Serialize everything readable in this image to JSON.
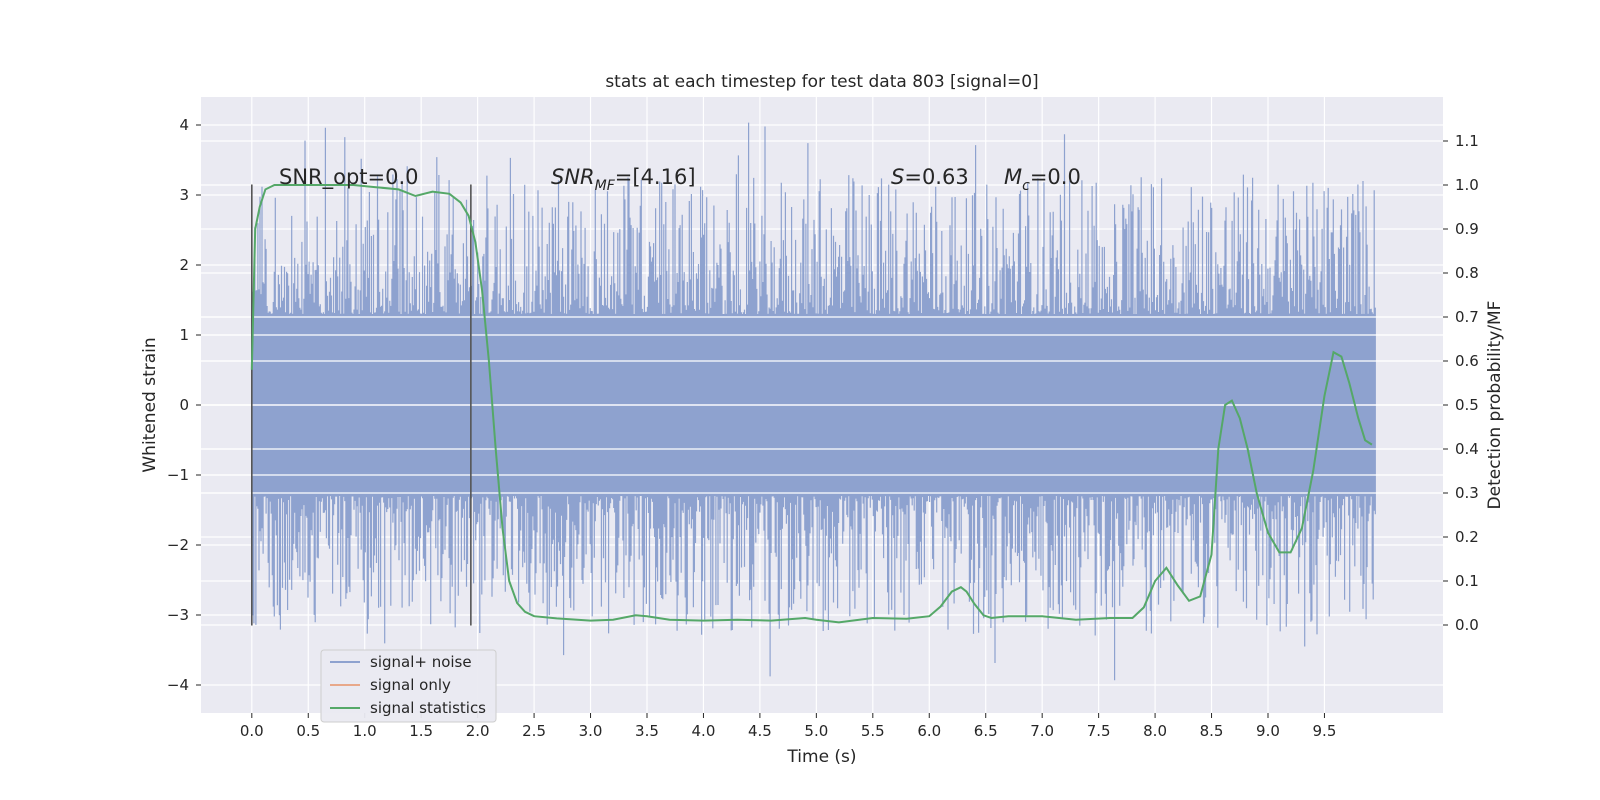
{
  "chart_data": {
    "type": "line",
    "title": "stats at each timestep for test data 803 [signal=0]",
    "xlabel": "Time (s)",
    "ylabel": "Whitened strain",
    "ylabel_right": "Detection probability/MF",
    "xlim": [
      -0.45,
      10.55
    ],
    "ylim": [
      -4.4,
      4.4
    ],
    "ylim_right": [
      -0.2,
      1.2
    ],
    "x_ticks": [
      "0.0",
      "0.5",
      "1.0",
      "1.5",
      "2.0",
      "2.5",
      "3.0",
      "3.5",
      "4.0",
      "4.5",
      "5.0",
      "5.5",
      "6.0",
      "6.5",
      "7.0",
      "7.5",
      "8.0",
      "8.5",
      "9.0",
      "9.5"
    ],
    "y_ticks": [
      "4",
      "3",
      "2",
      "1",
      "0",
      "−1",
      "−2",
      "−3",
      "−4"
    ],
    "y_ticks_right": [
      "1.1",
      "1.0",
      "0.9",
      "0.8",
      "0.7",
      "0.6",
      "0.5",
      "0.4",
      "0.3",
      "0.2",
      "0.1",
      "0.0"
    ],
    "grid": true,
    "legend_position": "lower-left",
    "annotations": {
      "snr_opt": "SNR_opt=0.0",
      "snr_mf_base": "SNR",
      "snr_mf_sub": "MF",
      "snr_mf_value": "=[4.16]",
      "s_label": "S",
      "s_value": "=0.63",
      "mc_base": "M",
      "mc_sub": "c",
      "mc_value": "=0.0"
    },
    "vlines": [
      0.0,
      1.94
    ],
    "vline_range": [
      -3.15,
      3.15
    ],
    "series": [
      {
        "name": "signal+ noise",
        "color": "#8ea2cf",
        "x_range": [
          0.0,
          9.95
        ],
        "band_low": -1.3,
        "band_high": 1.3,
        "max_spike": 4.05,
        "min_spike": -4.0
      },
      {
        "name": "signal only",
        "color": "#e8a88a",
        "values": []
      },
      {
        "name": "signal statistics",
        "color": "#55a868",
        "axis": "right",
        "x": [
          0.0,
          0.03,
          0.07,
          0.12,
          0.2,
          0.35,
          0.6,
          0.9,
          1.1,
          1.3,
          1.45,
          1.6,
          1.75,
          1.85,
          1.92,
          1.98,
          2.04,
          2.1,
          2.16,
          2.22,
          2.28,
          2.35,
          2.42,
          2.5,
          2.7,
          3.0,
          3.2,
          3.4,
          3.5,
          3.7,
          4.0,
          4.3,
          4.6,
          4.9,
          5.0,
          5.2,
          5.5,
          5.8,
          6.0,
          6.1,
          6.2,
          6.28,
          6.33,
          6.4,
          6.48,
          6.55,
          6.7,
          7.0,
          7.3,
          7.6,
          7.8,
          7.9,
          8.0,
          8.1,
          8.2,
          8.3,
          8.4,
          8.5,
          8.56,
          8.62,
          8.68,
          8.75,
          8.82,
          8.9,
          9.0,
          9.1,
          9.2,
          9.3,
          9.4,
          9.5,
          9.58,
          9.65,
          9.72,
          9.8,
          9.86,
          9.92
        ],
        "values": [
          0.58,
          0.9,
          0.95,
          0.99,
          1.0,
          1.0,
          1.0,
          1.0,
          0.995,
          0.99,
          0.975,
          0.985,
          0.98,
          0.96,
          0.93,
          0.87,
          0.76,
          0.6,
          0.4,
          0.22,
          0.1,
          0.05,
          0.03,
          0.02,
          0.015,
          0.01,
          0.012,
          0.022,
          0.02,
          0.012,
          0.01,
          0.012,
          0.01,
          0.016,
          0.012,
          0.006,
          0.016,
          0.014,
          0.02,
          0.042,
          0.076,
          0.086,
          0.076,
          0.048,
          0.022,
          0.016,
          0.02,
          0.02,
          0.012,
          0.016,
          0.016,
          0.04,
          0.1,
          0.13,
          0.09,
          0.055,
          0.065,
          0.16,
          0.4,
          0.5,
          0.51,
          0.47,
          0.4,
          0.3,
          0.21,
          0.165,
          0.165,
          0.22,
          0.35,
          0.52,
          0.62,
          0.61,
          0.55,
          0.47,
          0.42,
          0.41
        ]
      }
    ]
  }
}
